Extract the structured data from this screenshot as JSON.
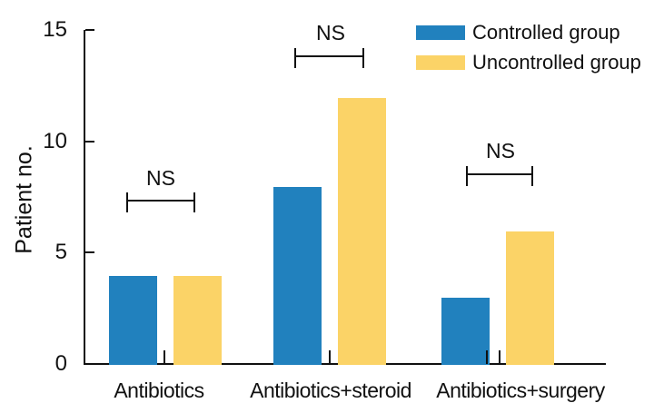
{
  "chart_data": {
    "type": "bar",
    "title": "",
    "xlabel": "",
    "ylabel": "Patient no.",
    "categories": [
      "Antibiotics",
      "Antibiotics+steroid",
      "Antibiotics+surgery"
    ],
    "series": [
      {
        "name": "Controlled group",
        "color": "#2181BE",
        "values": [
          4,
          8,
          3
        ]
      },
      {
        "name": "Uncontrolled group",
        "color": "#FBD367",
        "values": [
          4,
          12,
          6
        ]
      }
    ],
    "ylim": [
      0,
      15
    ],
    "yticks": [
      0,
      5,
      10,
      15
    ],
    "grid": false,
    "legend_position": "top-right",
    "significance_annotations": [
      {
        "label": "NS",
        "category": "Antibiotics"
      },
      {
        "label": "NS",
        "category": "Antibiotics+steroid"
      },
      {
        "label": "NS",
        "category": "Antibiotics+surgery"
      }
    ],
    "ink_color": "#111111",
    "background_color": "#ffffff"
  }
}
